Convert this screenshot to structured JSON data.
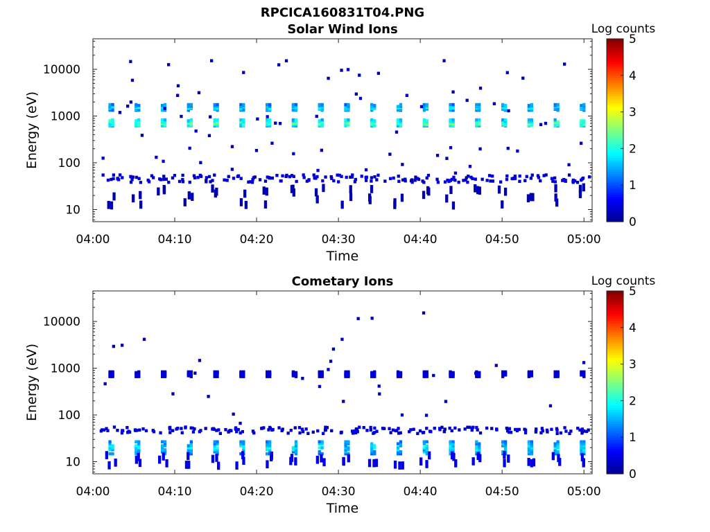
{
  "figure_title": "RPCICA160831T04.PNG",
  "colors": {
    "colormap": [
      "#00008f",
      "#0000ff",
      "#00ffff",
      "#ffff00",
      "#ff0000",
      "#800000"
    ]
  },
  "chart_data": [
    {
      "type": "heatmap",
      "title": "Solar Wind Ions",
      "xlabel": "Time",
      "ylabel": "Energy (eV)",
      "x_range": [
        "04:00",
        "05:01"
      ],
      "x_ticks": [
        "04:00",
        "04:10",
        "04:20",
        "04:30",
        "04:40",
        "04:50",
        "05:00"
      ],
      "y_scale": "log",
      "y_range": [
        5.5,
        45000
      ],
      "y_ticks": [
        "10",
        "100",
        "1000",
        "10000"
      ],
      "colorbar": {
        "label": "Log counts",
        "range": [
          0,
          5
        ],
        "ticks": [
          "0",
          "1",
          "2",
          "3",
          "4",
          "5"
        ]
      },
      "sweep_times_min": [
        2.2,
        5.4,
        8.6,
        11.8,
        15.0,
        18.2,
        21.4,
        24.6,
        27.8,
        31.0,
        34.2,
        37.4,
        40.6,
        43.8,
        47.0,
        50.2,
        53.4,
        56.6,
        59.8
      ],
      "features": [
        {
          "label": "main peak",
          "energy_min": 600,
          "energy_max": 850,
          "log_counts_peak": 2.5
        },
        {
          "label": "secondary peak",
          "energy_min": 1300,
          "energy_max": 1800,
          "log_counts_peak": 1.9
        },
        {
          "label": "low-energy band",
          "energy_min": 38,
          "energy_max": 55,
          "log_counts_peak": 0.6
        },
        {
          "label": "lowest-energy streaks",
          "energy_min": 12,
          "energy_max": 30,
          "log_counts_peak": 0.2
        }
      ]
    },
    {
      "type": "heatmap",
      "title": "Cometary Ions",
      "xlabel": "Time",
      "ylabel": "Energy (eV)",
      "x_range": [
        "04:00",
        "05:01"
      ],
      "x_ticks": [
        "04:00",
        "04:10",
        "04:20",
        "04:30",
        "04:40",
        "04:50",
        "05:00"
      ],
      "y_scale": "log",
      "y_range": [
        5.5,
        45000
      ],
      "y_ticks": [
        "10",
        "100",
        "1000",
        "10000"
      ],
      "colorbar": {
        "label": "Log counts",
        "range": [
          0,
          5
        ],
        "ticks": [
          "0",
          "1",
          "2",
          "3",
          "4",
          "5"
        ]
      },
      "sweep_times_min": [
        2.2,
        5.4,
        8.6,
        11.8,
        15.0,
        18.2,
        21.4,
        24.6,
        27.8,
        31.0,
        34.2,
        37.4,
        40.6,
        43.8,
        47.0,
        50.2,
        53.4,
        56.6,
        59.8
      ],
      "features": [
        {
          "label": "main peak",
          "energy_min": 14,
          "energy_max": 28,
          "log_counts_peak": 1.9
        },
        {
          "label": "lowest-energy streaks",
          "energy_min": 8,
          "energy_max": 14,
          "log_counts_peak": 0.5
        },
        {
          "label": "low-energy band",
          "energy_min": 40,
          "energy_max": 55,
          "log_counts_peak": 0.6
        },
        {
          "label": "solar wind contamination",
          "energy_min": 650,
          "energy_max": 850,
          "log_counts_peak": 0.5
        }
      ]
    }
  ]
}
